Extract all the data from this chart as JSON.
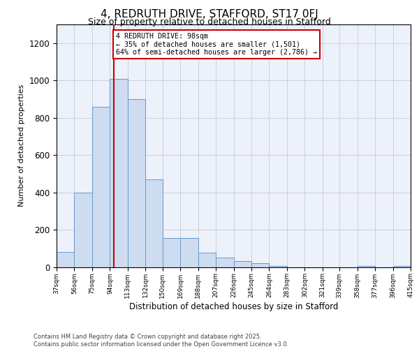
{
  "title1": "4, REDRUTH DRIVE, STAFFORD, ST17 0FJ",
  "title2": "Size of property relative to detached houses in Stafford",
  "xlabel": "Distribution of detached houses by size in Stafford",
  "ylabel": "Number of detached properties",
  "bin_edges": [
    37,
    56,
    75,
    94,
    113,
    132,
    150,
    169,
    188,
    207,
    226,
    245,
    264,
    283,
    302,
    321,
    339,
    358,
    377,
    396,
    415
  ],
  "bar_heights": [
    80,
    400,
    860,
    1010,
    900,
    470,
    155,
    155,
    75,
    50,
    30,
    20,
    5,
    0,
    0,
    0,
    0,
    5,
    0,
    5
  ],
  "bar_color": "#cddcf0",
  "bar_edge_color": "#6699cc",
  "red_line_x": 98,
  "annotation_line1": "4 REDRUTH DRIVE: 98sqm",
  "annotation_line2": "← 35% of detached houses are smaller (1,501)",
  "annotation_line3": "64% of semi-detached houses are larger (2,786) →",
  "annotation_box_facecolor": "#ffffff",
  "annotation_box_edgecolor": "#cc0000",
  "red_line_color": "#cc0000",
  "grid_color": "#c8d0e0",
  "background_color": "#edf1fa",
  "ylim_max": 1300,
  "yticks": [
    0,
    200,
    400,
    600,
    800,
    1000,
    1200
  ],
  "footer1": "Contains HM Land Registry data © Crown copyright and database right 2025.",
  "footer2": "Contains public sector information licensed under the Open Government Licence v3.0.",
  "fig_width": 6.0,
  "fig_height": 5.0,
  "dpi": 100
}
